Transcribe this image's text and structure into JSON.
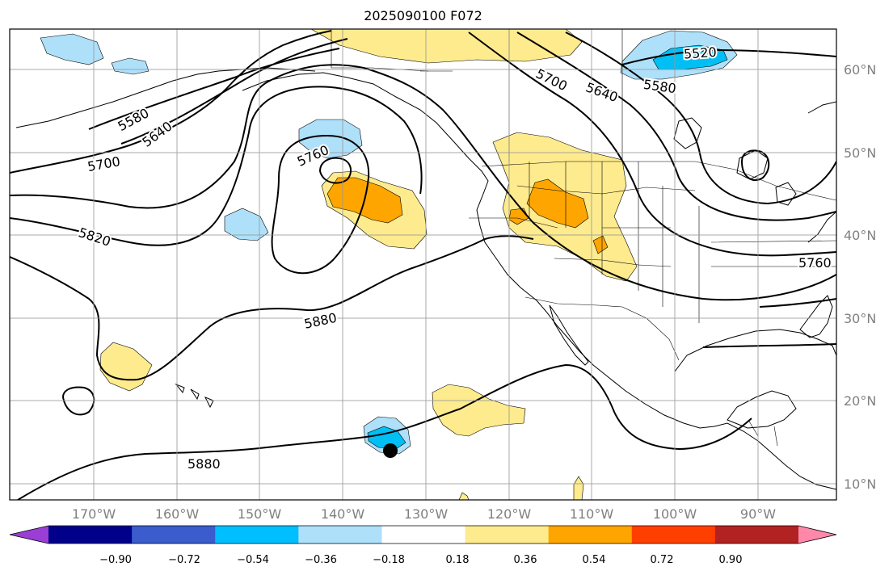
{
  "title": "2025090100 F072",
  "map": {
    "lon_labels": [
      "170°W",
      "160°W",
      "150°W",
      "140°W",
      "130°W",
      "120°W",
      "110°W",
      "100°W",
      "90°W"
    ],
    "lat_labels": [
      "60°N",
      "50°N",
      "40°N",
      "30°N",
      "20°N",
      "10°N"
    ],
    "gridline_color": "#999999",
    "coast_color": "#000000"
  },
  "contours": {
    "color": "#000000",
    "labels": [
      "5520",
      "5580",
      "5640",
      "5700",
      "5640",
      "5580",
      "5700",
      "5760",
      "5820",
      "5880",
      "5880",
      "5760"
    ]
  },
  "anomaly_fill": {
    "colors": {
      "light_blue": "#aee0fa",
      "cyan": "#00bff4",
      "yellow": "#feeb8e",
      "orange": "#fea500"
    }
  },
  "storm_marker": {
    "icon": "filled-black-circle"
  },
  "colorbar": {
    "ticks": [
      "−0.90",
      "−0.72",
      "−0.54",
      "−0.36",
      "−0.18",
      "0.18",
      "0.36",
      "0.54",
      "0.72",
      "0.90"
    ],
    "colors": [
      "#9a3ed6",
      "#00008b",
      "#3a5ccc",
      "#00bfff",
      "#aee0fa",
      "#ffffff",
      "#feeb8e",
      "#fea500",
      "#ff3f00",
      "#b22222",
      "#ff88aa"
    ]
  }
}
